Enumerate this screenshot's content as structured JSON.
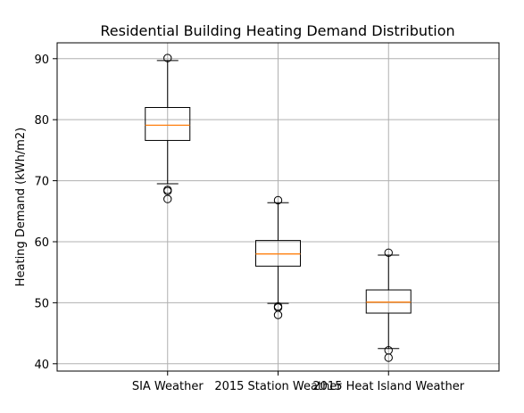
{
  "chart_data": {
    "type": "boxplot",
    "title": "Residential Building Heating Demand Distribution",
    "xlabel": "",
    "ylabel": "Heating Demand (kWh/m2)",
    "ylim": [
      38.8,
      92.6
    ],
    "yticks": [
      40,
      50,
      60,
      70,
      80,
      90
    ],
    "grid": true,
    "categories": [
      "SIA Weather",
      "2015 Station Weather",
      "2015 Heat Island Weather"
    ],
    "boxes": [
      {
        "q1": 76.6,
        "median": 79.1,
        "q3": 82.0,
        "whisker_low": 69.5,
        "whisker_high": 89.7,
        "fliers": [
          90.1,
          68.5,
          68.3,
          67.0
        ]
      },
      {
        "q1": 56.0,
        "median": 58.0,
        "q3": 60.2,
        "whisker_low": 49.9,
        "whisker_high": 66.4,
        "fliers": [
          66.8,
          49.4,
          49.2,
          48.0
        ]
      },
      {
        "q1": 48.3,
        "median": 50.1,
        "q3": 52.1,
        "whisker_low": 42.5,
        "whisker_high": 57.8,
        "fliers": [
          58.2,
          42.2,
          41.0
        ]
      }
    ],
    "colors": {
      "box": "#000000",
      "median": "#ff7f0e",
      "grid": "#b0b0b0"
    }
  }
}
